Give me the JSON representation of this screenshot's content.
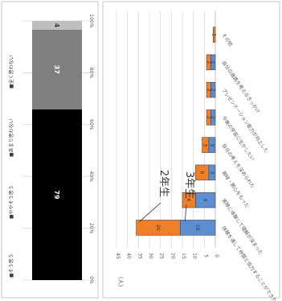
{
  "chart_data": [
    {
      "type": "bar",
      "stacked": true,
      "orientation": "percent-stacked",
      "xlim": [
        0,
        100
      ],
      "ticks": [
        "0%",
        "20%",
        "40%",
        "60%",
        "80%",
        "100%"
      ],
      "series": [
        {
          "name": "■そう思う",
          "value": 79,
          "color": "#000000"
        },
        {
          "name": "■ややそう思う",
          "value": 37,
          "color": "#7f7f7f"
        },
        {
          "name": "■あまり思わない",
          "value": 4,
          "color": "#bfbfbf"
        },
        {
          "name": "■全く思わない",
          "value": 0,
          "color": "#f2f2f2"
        }
      ]
    },
    {
      "type": "bar",
      "stacked": true,
      "unit": "(人)",
      "ylim": [
        0,
        45
      ],
      "yticks": [
        "0",
        "5",
        "10",
        "15",
        "20",
        "25",
        "30",
        "35",
        "40",
        "45"
      ],
      "categories": [
        "体験を通して仲間と協力することができた",
        "実際に体験して理解が深まった",
        "興味・関心をもった",
        "自分の考えを深められた",
        "今後の学習に生かしたい",
        "プレゼンテーション能力が向上した",
        "自分の進路を考えるきっかけ",
        "その他"
      ],
      "series": [
        {
          "name": "3年生",
          "color": "#5b8fd1",
          "values": [
            16,
            9,
            3,
            3,
            2,
            2,
            2,
            0
          ]
        },
        {
          "name": "2年生",
          "color": "#f07f2a",
          "values": [
            20,
            6,
            6,
            3,
            2,
            2,
            2,
            1
          ]
        }
      ],
      "callouts": [
        "2年生",
        "3年生"
      ]
    }
  ]
}
